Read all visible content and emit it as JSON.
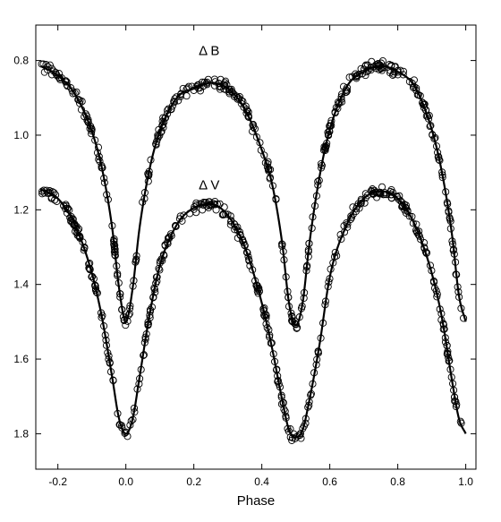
{
  "chart_data": {
    "type": "scatter",
    "title": "",
    "xlabel": "Phase",
    "ylabel": "",
    "xlim": [
      -0.265,
      1.03
    ],
    "ylim": [
      1.895,
      0.705
    ],
    "y_inverted": true,
    "x_ticks": [
      -0.2,
      0.0,
      0.2,
      0.4,
      0.6,
      0.8,
      1.0
    ],
    "x_tick_labels": [
      "-0.2",
      "0.0",
      "0.2",
      "0.4",
      "0.6",
      "0.8",
      "1.0"
    ],
    "y_ticks": [
      0.8,
      1.0,
      1.2,
      1.4,
      1.6,
      1.8
    ],
    "y_tick_labels": [
      "0.8",
      "1.0",
      "1.2",
      "1.4",
      "1.6",
      "1.8"
    ],
    "grid": false,
    "series": [
      {
        "name": "Δ B",
        "label_at": {
          "x": 0.245,
          "y": 0.785
        },
        "x": [
          -0.25,
          -0.2,
          -0.15,
          -0.1,
          -0.07,
          -0.04,
          -0.02,
          0.0,
          0.02,
          0.04,
          0.07,
          0.1,
          0.15,
          0.2,
          0.25,
          0.3,
          0.35,
          0.4,
          0.43,
          0.46,
          0.48,
          0.5,
          0.52,
          0.54,
          0.57,
          0.6,
          0.65,
          0.7,
          0.75,
          0.8,
          0.85,
          0.9,
          0.93,
          0.96,
          0.98,
          1.0
        ],
        "y": [
          0.815,
          0.84,
          0.89,
          0.99,
          1.09,
          1.25,
          1.41,
          1.5,
          1.41,
          1.25,
          1.09,
          0.99,
          0.9,
          0.875,
          0.86,
          0.875,
          0.93,
          1.04,
          1.13,
          1.29,
          1.45,
          1.51,
          1.45,
          1.29,
          1.11,
          0.985,
          0.87,
          0.83,
          0.815,
          0.83,
          0.87,
          0.985,
          1.1,
          1.27,
          1.43,
          1.5
        ]
      },
      {
        "name": "Δ V",
        "label_at": {
          "x": 0.245,
          "y": 1.145
        },
        "x": [
          -0.25,
          -0.2,
          -0.15,
          -0.1,
          -0.07,
          -0.04,
          -0.02,
          0.0,
          0.02,
          0.04,
          0.07,
          0.1,
          0.15,
          0.2,
          0.25,
          0.3,
          0.35,
          0.4,
          0.43,
          0.46,
          0.48,
          0.5,
          0.52,
          0.54,
          0.57,
          0.6,
          0.65,
          0.7,
          0.75,
          0.8,
          0.85,
          0.9,
          0.93,
          0.96,
          0.98,
          1.0
        ],
        "y": [
          1.145,
          1.17,
          1.24,
          1.37,
          1.49,
          1.65,
          1.76,
          1.8,
          1.76,
          1.65,
          1.48,
          1.35,
          1.24,
          1.195,
          1.185,
          1.215,
          1.3,
          1.45,
          1.57,
          1.71,
          1.79,
          1.81,
          1.79,
          1.71,
          1.56,
          1.38,
          1.24,
          1.17,
          1.15,
          1.17,
          1.24,
          1.37,
          1.49,
          1.66,
          1.76,
          1.8
        ]
      }
    ]
  }
}
